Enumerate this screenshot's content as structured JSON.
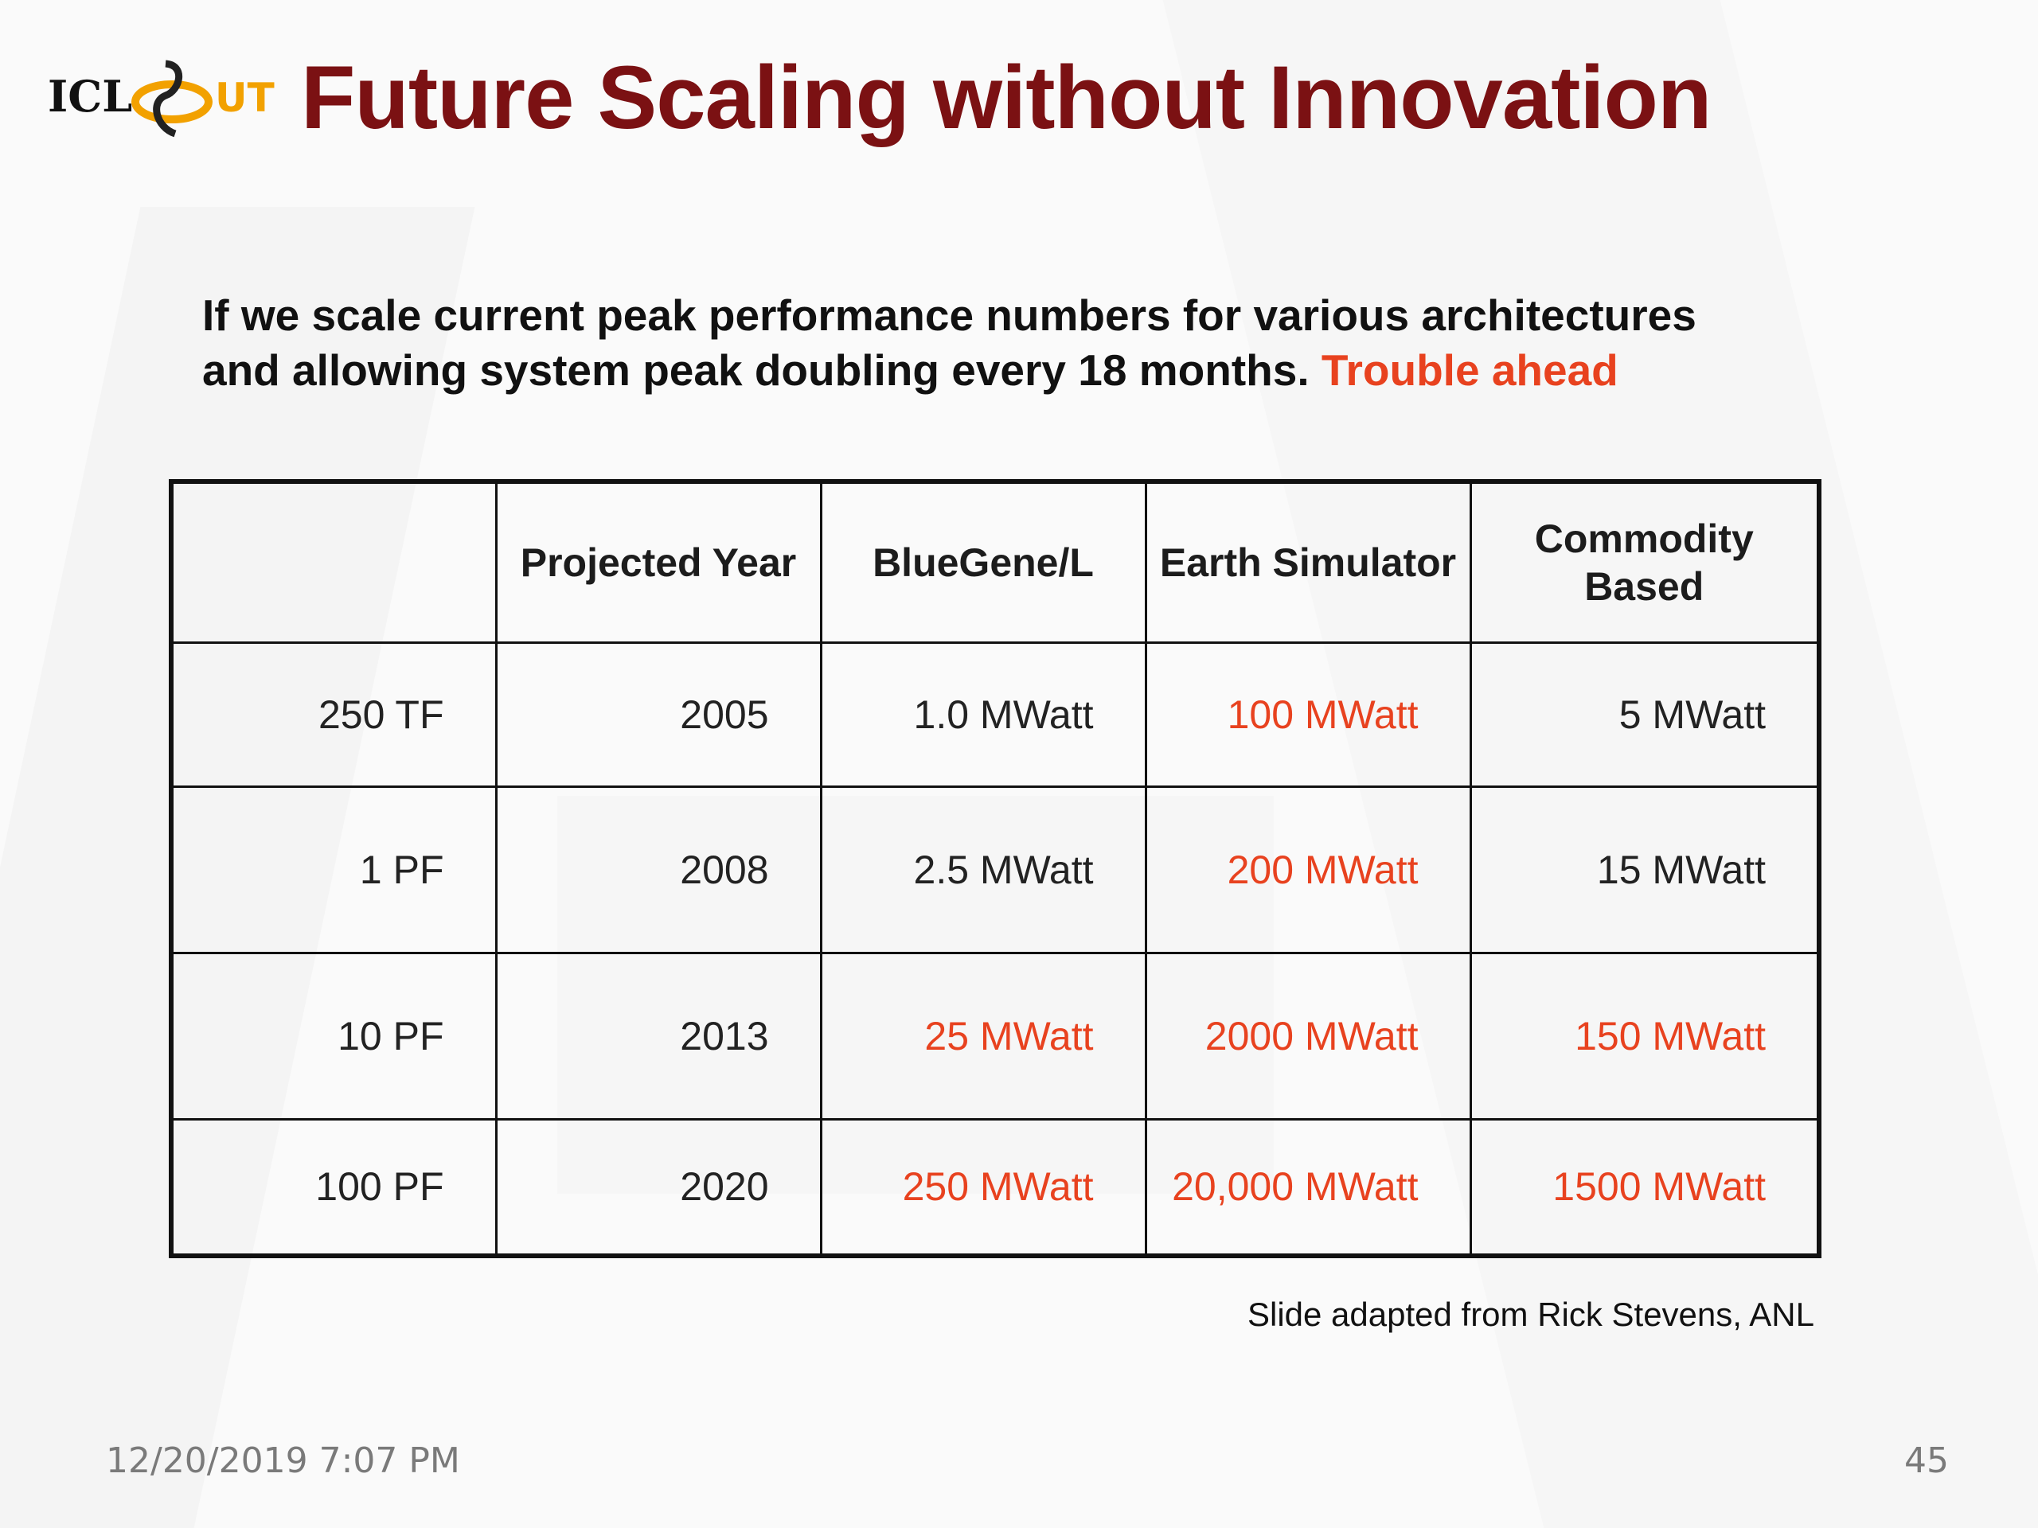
{
  "slide": {
    "title": "Future Scaling without Innovation",
    "intro_line1": "If we scale current peak performance numbers for various architectures",
    "intro_line2": "and allowing system peak doubling every 18 months.",
    "intro_highlight": "Trouble ahead",
    "highlight_color": "#e8421f",
    "title_color": "#7b1113"
  },
  "logo": {
    "left_text": "ICL",
    "right_text": "UT"
  },
  "table": {
    "headers": [
      "",
      "Projected Year",
      "BlueGene/L",
      "Earth Simulator",
      "Commodity Based"
    ],
    "rows": [
      {
        "label": "250 TF",
        "year": "2005",
        "bluegene": "1.0 MWatt",
        "earth": "100 MWatt",
        "commodity": "5 MWatt"
      },
      {
        "label": "1 PF",
        "year": "2008",
        "bluegene": "2.5 MWatt",
        "earth": "200 MWatt",
        "commodity": "15 MWatt"
      },
      {
        "label": "10 PF",
        "year": "2013",
        "bluegene": "25 MWatt",
        "earth": "2000 MWatt",
        "commodity": "150 MWatt"
      },
      {
        "label": "100 PF",
        "year": "2020",
        "bluegene": "250 MWatt",
        "earth": "20,000 MWatt",
        "commodity": "1500 MWatt"
      }
    ]
  },
  "credit": "Slide adapted from Rick Stevens, ANL",
  "footer": {
    "date": "12/20/2019 7:07 PM",
    "page_number": "45"
  }
}
